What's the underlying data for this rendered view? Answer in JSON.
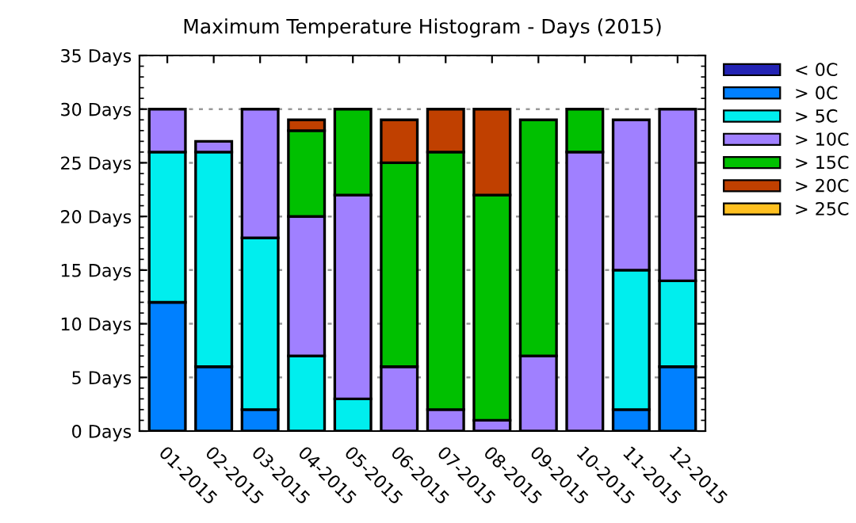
{
  "chart_data": {
    "type": "bar",
    "stacked": true,
    "title": "Maximum Temperature Histogram - Days (2015)",
    "categories": [
      "01-2015",
      "02-2015",
      "03-2015",
      "04-2015",
      "05-2015",
      "06-2015",
      "07-2015",
      "08-2015",
      "09-2015",
      "10-2015",
      "11-2015",
      "12-2015"
    ],
    "series": [
      {
        "name": "< 0C",
        "color": "#2323b4",
        "values": [
          0,
          0,
          0,
          0,
          0,
          0,
          0,
          0,
          0,
          0,
          0,
          0
        ]
      },
      {
        "name": "> 0C",
        "color": "#0080ff",
        "values": [
          12,
          6,
          2,
          0,
          0,
          0,
          0,
          0,
          0,
          0,
          2,
          6
        ]
      },
      {
        "name": "> 5C",
        "color": "#00eeee",
        "values": [
          14,
          20,
          16,
          7,
          3,
          0,
          0,
          0,
          0,
          0,
          13,
          8
        ]
      },
      {
        "name": "> 10C",
        "color": "#a080ff",
        "values": [
          4,
          1,
          12,
          13,
          19,
          6,
          2,
          1,
          7,
          26,
          14,
          16
        ]
      },
      {
        "name": "> 15C",
        "color": "#00c000",
        "values": [
          0,
          0,
          0,
          8,
          8,
          19,
          24,
          21,
          22,
          4,
          0,
          0
        ]
      },
      {
        "name": "> 20C",
        "color": "#c04000",
        "values": [
          0,
          0,
          0,
          1,
          0,
          4,
          4,
          8,
          0,
          0,
          0,
          0
        ]
      },
      {
        "name": "> 25C",
        "color": "#ffc020",
        "values": [
          0,
          0,
          0,
          0,
          0,
          0,
          0,
          0,
          0,
          0,
          0,
          0
        ]
      }
    ],
    "ylim": [
      0,
      35
    ],
    "yticks": [
      {
        "value": 0,
        "label": "0 Days"
      },
      {
        "value": 5,
        "label": "5 Days"
      },
      {
        "value": 10,
        "label": "10 Days"
      },
      {
        "value": 15,
        "label": "15 Days"
      },
      {
        "value": 20,
        "label": "20 Days"
      },
      {
        "value": 25,
        "label": "25 Days"
      },
      {
        "value": 30,
        "label": "30 Days"
      },
      {
        "value": 35,
        "label": "35 Days"
      }
    ],
    "grid": "y",
    "legend": "right"
  }
}
